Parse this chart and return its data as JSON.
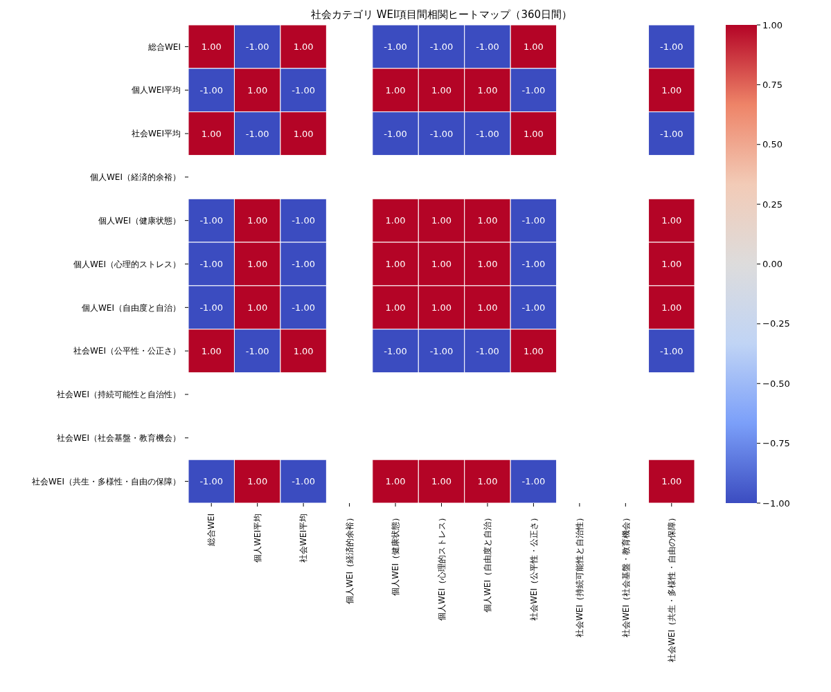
{
  "chart_data": {
    "type": "heatmap",
    "title": "社会カテゴリ WEI項目間相関ヒートマップ（360日間）",
    "categories": [
      "総合WEI",
      "個人WEI平均",
      "社会WEI平均",
      "個人WEI（経済的余裕）",
      "個人WEI（健康状態）",
      "個人WEI（心理的ストレス）",
      "個人WEI（自由度と自治）",
      "社会WEI（公平性・公正さ）",
      "社会WEI（持続可能性と自治性）",
      "社会WEI（社会基盤・教育機会）",
      "社会WEI（共生・多様性・自由の保障）"
    ],
    "y_categories": [
      "総合WEI",
      "個人WEI平均",
      "社会WEI平均",
      "個人WEI（経済的余裕）",
      "個人WEI（健康状態）",
      "個人WEI（心理的ストレス）",
      "個人WEI（自由度と自治）",
      "社会WEI（公平性・公正さ）",
      "社会WEI（持続可能性と自治性）",
      "社会WEI（社会基盤・教育機会）",
      "社会WEI（共生・多様性・自由の保障）"
    ],
    "cells": [
      [
        1,
        -1,
        1,
        null,
        -1,
        -1,
        -1,
        1,
        null,
        null,
        -1
      ],
      [
        -1,
        1,
        -1,
        null,
        1,
        1,
        1,
        -1,
        null,
        null,
        1
      ],
      [
        1,
        -1,
        1,
        null,
        -1,
        -1,
        -1,
        1,
        null,
        null,
        -1
      ],
      [
        null,
        null,
        null,
        null,
        null,
        null,
        null,
        null,
        null,
        null,
        null
      ],
      [
        -1,
        1,
        -1,
        null,
        1,
        1,
        1,
        -1,
        null,
        null,
        1
      ],
      [
        -1,
        1,
        -1,
        null,
        1,
        1,
        1,
        -1,
        null,
        null,
        1
      ],
      [
        -1,
        1,
        -1,
        null,
        1,
        1,
        1,
        -1,
        null,
        null,
        1
      ],
      [
        1,
        -1,
        1,
        null,
        -1,
        -1,
        -1,
        1,
        null,
        null,
        -1
      ],
      [
        null,
        null,
        null,
        null,
        null,
        null,
        null,
        null,
        null,
        null,
        null
      ],
      [
        null,
        null,
        null,
        null,
        null,
        null,
        null,
        null,
        null,
        null,
        null
      ],
      [
        -1,
        1,
        -1,
        null,
        1,
        1,
        1,
        -1,
        null,
        null,
        1
      ]
    ],
    "cell_labels": [
      [
        "1.00",
        "-1.00",
        "1.00",
        null,
        "-1.00",
        "-1.00",
        "-1.00",
        "1.00",
        null,
        null,
        "-1.00"
      ],
      [
        "-1.00",
        "1.00",
        "-1.00",
        null,
        "1.00",
        "1.00",
        "1.00",
        "-1.00",
        null,
        null,
        "1.00"
      ],
      [
        "1.00",
        "-1.00",
        "1.00",
        null,
        "-1.00",
        "-1.00",
        "-1.00",
        "1.00",
        null,
        null,
        "-1.00"
      ],
      [
        null,
        null,
        null,
        null,
        null,
        null,
        null,
        null,
        null,
        null,
        null
      ],
      [
        "-1.00",
        "1.00",
        "-1.00",
        null,
        "1.00",
        "1.00",
        "1.00",
        "-1.00",
        null,
        null,
        "1.00"
      ],
      [
        "-1.00",
        "1.00",
        "-1.00",
        null,
        "1.00",
        "1.00",
        "1.00",
        "-1.00",
        null,
        null,
        "1.00"
      ],
      [
        "-1.00",
        "1.00",
        "-1.00",
        null,
        "1.00",
        "1.00",
        "1.00",
        "-1.00",
        null,
        null,
        "1.00"
      ],
      [
        "1.00",
        "-1.00",
        "1.00",
        null,
        "-1.00",
        "-1.00",
        "-1.00",
        "1.00",
        null,
        null,
        "-1.00"
      ],
      [
        null,
        null,
        null,
        null,
        null,
        null,
        null,
        null,
        null,
        null,
        null
      ],
      [
        null,
        null,
        null,
        null,
        null,
        null,
        null,
        null,
        null,
        null,
        null
      ],
      [
        "-1.00",
        "1.00",
        "-1.00",
        null,
        "1.00",
        "1.00",
        "1.00",
        "-1.00",
        null,
        null,
        "1.00"
      ]
    ],
    "colors": [
      "#3b4cc0",
      "#7b9ff9",
      "#c0d4f5",
      "#dddcdc",
      "#f2cbb7",
      "#ee8468",
      "#b40426"
    ],
    "clim": [
      -1,
      1
    ],
    "cticks": [
      {
        "value": -1,
        "label": "−1.00"
      },
      {
        "value": -0.75,
        "label": "−0.75"
      },
      {
        "value": -0.5,
        "label": "−0.50"
      },
      {
        "value": -0.25,
        "label": "−0.25"
      },
      {
        "value": 0,
        "label": "0.00"
      },
      {
        "value": 0.25,
        "label": "0.25"
      },
      {
        "value": 0.5,
        "label": "0.50"
      },
      {
        "value": 0.75,
        "label": "0.75"
      },
      {
        "value": 1,
        "label": "1.00"
      }
    ]
  }
}
